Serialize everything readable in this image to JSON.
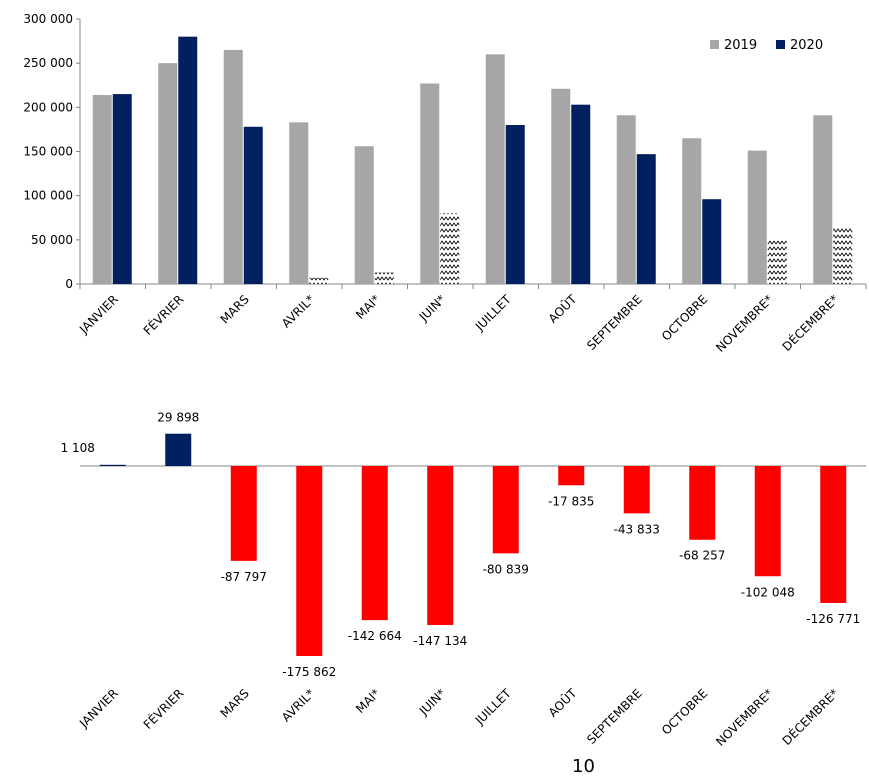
{
  "chart_data": [
    {
      "type": "bar",
      "categories": [
        "JANVIER",
        "FÉVRIER",
        "MARS",
        "AVRIL*",
        "MAI*",
        "JUIN*",
        "JUILLET",
        "AOÛT",
        "SEPTEMBRE",
        "OCTOBRE",
        "NOVEMBRE*",
        "DÉCEMBRE*"
      ],
      "series": [
        {
          "name": "2019",
          "color": "#a6a6a6",
          "values": [
            214000,
            250000,
            265000,
            183000,
            156000,
            227000,
            260000,
            221000,
            191000,
            165000,
            151000,
            191000
          ]
        },
        {
          "name": "2020",
          "color": "#002060",
          "values": [
            215000,
            280000,
            178000,
            7000,
            13000,
            80000,
            180000,
            203000,
            147000,
            96000,
            49000,
            64000
          ],
          "hatched": [
            false,
            false,
            false,
            true,
            true,
            true,
            false,
            false,
            false,
            false,
            true,
            true
          ]
        }
      ],
      "ylim": [
        0,
        300000
      ],
      "yticks": [
        "0",
        "50 000",
        "100 000",
        "150 000",
        "200 000",
        "250 000",
        "300 000"
      ],
      "legend": "top-right",
      "grid": false
    },
    {
      "type": "bar",
      "categories": [
        "JANVIER",
        "FÉVRIER",
        "MARS",
        "AVRIL*",
        "MAI*",
        "JUIN*",
        "JUILLET",
        "AOÛT",
        "SEPTEMBRE",
        "OCTOBRE",
        "NOVEMBRE*",
        "DÉCEMBRE*"
      ],
      "values": [
        1108,
        29898,
        -87797,
        -175862,
        -142664,
        -147134,
        -80839,
        -17835,
        -43833,
        -68257,
        -102048,
        -126771
      ],
      "data_labels": [
        "1 108",
        "29 898",
        "-87 797",
        "-175 862",
        "-142 664",
        "-147 134",
        "-80 839",
        "-17 835",
        "-43 833",
        "-68 257",
        "-102 048",
        "-126 771"
      ],
      "positive_color": "#002060",
      "negative_color": "#ff0000",
      "ylim": [
        -200000,
        40000
      ],
      "grid": false
    }
  ],
  "footer": {
    "page_number": "10"
  }
}
